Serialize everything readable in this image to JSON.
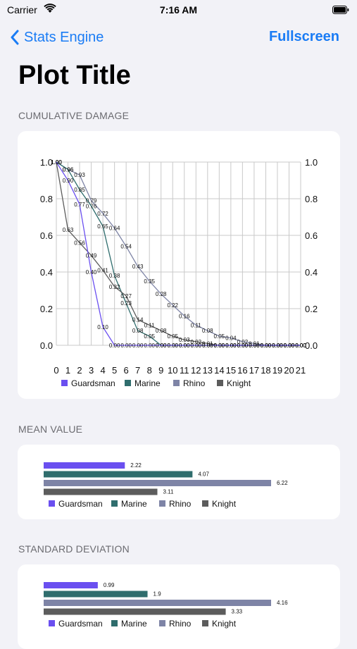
{
  "status_bar": {
    "carrier": "Carrier",
    "time": "7:16 AM"
  },
  "nav": {
    "back_label": "Stats Engine",
    "fullscreen_label": "Fullscreen"
  },
  "page_title": "Plot Title",
  "colors": {
    "Guardsman": "#6a4ff0",
    "Marine": "#2f6d6d",
    "Rhino": "#7e84a6",
    "Knight": "#5c5c5c",
    "accent": "#1a7cf5"
  },
  "sections": {
    "cumulative": "CUMULATIVE DAMAGE",
    "mean": "MEAN VALUE",
    "stddev": "STANDARD DEVIATION"
  },
  "chart_data": [
    {
      "type": "line",
      "x": [
        0,
        1,
        2,
        3,
        4,
        5,
        6,
        7,
        8,
        9,
        10,
        11,
        12,
        13,
        14,
        15,
        16,
        17,
        18,
        19,
        20,
        21
      ],
      "ylim": [
        0,
        1.0
      ],
      "xlim": [
        0,
        21
      ],
      "y_ticks": [
        "0.0",
        "0.2",
        "0.4",
        "0.6",
        "0.8",
        "1.0"
      ],
      "x_ticks": [
        "0",
        "1",
        "2",
        "3",
        "4",
        "5",
        "6",
        "7",
        "8",
        "9",
        "10",
        "11",
        "12",
        "13",
        "14",
        "15",
        "16",
        "17",
        "18",
        "19",
        "20",
        "21"
      ],
      "grid": true,
      "legend_position": "bottom",
      "series": [
        {
          "name": "Guardsman",
          "values": [
            1.0,
            0.9,
            0.77,
            0.4,
            0.1,
            0.0,
            0.0,
            0.0,
            0.0,
            0.0,
            0.0,
            0.0,
            0.0,
            0.0,
            0.0,
            0.0,
            0.0,
            0.0,
            0.0,
            0.0,
            0.0,
            0.0
          ]
        },
        {
          "name": "Marine",
          "values": [
            1.0,
            0.96,
            0.85,
            0.76,
            0.65,
            0.38,
            0.23,
            0.08,
            0.05,
            0.0,
            0.0,
            0.0,
            0.0,
            0.0,
            0.0,
            0.0,
            0.0,
            0.0,
            0.0,
            0.0,
            0.0,
            0.0
          ]
        },
        {
          "name": "Rhino",
          "values": [
            1.0,
            0.96,
            0.93,
            0.79,
            0.72,
            0.64,
            0.54,
            0.43,
            0.35,
            0.28,
            0.22,
            0.16,
            0.11,
            0.08,
            0.05,
            0.04,
            0.02,
            0.01,
            0.0,
            0.0,
            0.0,
            0.0
          ]
        },
        {
          "name": "Knight",
          "values": [
            1.0,
            0.63,
            0.56,
            0.49,
            0.41,
            0.32,
            0.27,
            0.14,
            0.11,
            0.08,
            0.05,
            0.03,
            0.02,
            0.01,
            0.0,
            0.0,
            0.0,
            0.0,
            0.0,
            0.0,
            0.0,
            0.0
          ]
        }
      ]
    },
    {
      "type": "bar",
      "orientation": "horizontal",
      "categories": [
        "Guardsman",
        "Marine",
        "Rhino",
        "Knight"
      ],
      "values": [
        2.22,
        4.07,
        6.22,
        3.11
      ],
      "value_labels": [
        "2.22",
        "4.07",
        "6.22",
        "3.11"
      ],
      "xlim": [
        0,
        6.22
      ],
      "legend_position": "bottom"
    },
    {
      "type": "bar",
      "orientation": "horizontal",
      "categories": [
        "Guardsman",
        "Marine",
        "Rhino",
        "Knight"
      ],
      "values": [
        0.99,
        1.9,
        4.16,
        3.33
      ],
      "value_labels": [
        "0.99",
        "1.9",
        "4.16",
        "3.33"
      ],
      "xlim": [
        0,
        4.16
      ],
      "legend_position": "bottom"
    }
  ]
}
